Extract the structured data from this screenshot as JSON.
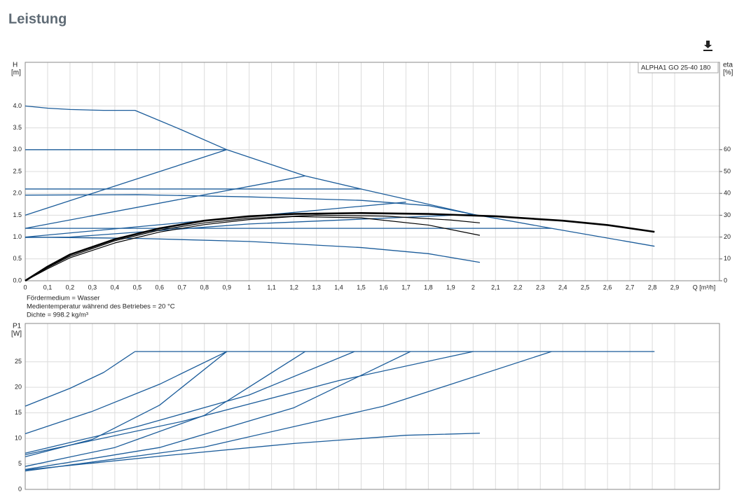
{
  "page_title": "Leistung",
  "chart_data": [
    {
      "type": "line",
      "ylabel": "H",
      "yunit": "[m]",
      "y2label": "eta",
      "y2unit": "[%]",
      "xlabel": "Q [m³/h]",
      "annotation": "ALPHA1 GO 25-40 180",
      "notes": [
        "Fördermedium = Wasser",
        "Medientemperatur während des Betriebes = 20 °C",
        "Dichte = 998.2 kg/m³"
      ],
      "xlim": [
        0,
        3.1
      ],
      "ylim": [
        0,
        5
      ],
      "y2lim": [
        0,
        100
      ],
      "grid": true,
      "xticks": [
        0,
        {
          "value": 0.1,
          "label": "0,1"
        },
        {
          "value": 0.2,
          "label": "0,2"
        },
        {
          "value": 0.3,
          "label": "0,3"
        },
        {
          "value": 0.4,
          "label": "0,4"
        },
        {
          "value": 0.5,
          "label": "0,5"
        },
        {
          "value": 0.6,
          "label": "0,6"
        },
        {
          "value": 0.7,
          "label": "0,7"
        },
        {
          "value": 0.8,
          "label": "0,8"
        },
        {
          "value": 0.9,
          "label": "0,9"
        },
        1,
        {
          "value": 1.1,
          "label": "1,1"
        },
        {
          "value": 1.2,
          "label": "1,2"
        },
        {
          "value": 1.3,
          "label": "1,3"
        },
        {
          "value": 1.4,
          "label": "1,4"
        },
        {
          "value": 1.5,
          "label": "1,5"
        },
        {
          "value": 1.6,
          "label": "1,6"
        },
        {
          "value": 1.7,
          "label": "1,7"
        },
        {
          "value": 1.8,
          "label": "1,8"
        },
        {
          "value": 1.9,
          "label": "1,9"
        },
        2,
        {
          "value": 2.1,
          "label": "2,1"
        },
        {
          "value": 2.2,
          "label": "2,2"
        },
        {
          "value": 2.3,
          "label": "2,3"
        },
        {
          "value": 2.4,
          "label": "2,4"
        },
        {
          "value": 2.5,
          "label": "2,5"
        },
        {
          "value": 2.6,
          "label": "2,6"
        },
        {
          "value": 2.7,
          "label": "2,7"
        },
        {
          "value": 2.8,
          "label": "2,8"
        },
        {
          "value": 2.9,
          "label": "2,9"
        }
      ],
      "yticks": [
        {
          "value": 0,
          "label": "0.0"
        },
        0.5,
        {
          "value": 1,
          "label": "1.0"
        },
        1.5,
        {
          "value": 2,
          "label": "2.0"
        },
        2.5,
        {
          "value": 3,
          "label": "3.0"
        },
        3.5,
        {
          "value": 4,
          "label": "4.0"
        }
      ],
      "y2ticks": [
        0,
        10,
        20,
        30,
        40,
        50,
        60
      ],
      "series": [
        {
          "color": "#1b5c9a",
          "line_width": 1.3,
          "x": [
            0,
            0.1,
            0.2,
            0.35,
            0.49,
            0.7,
            0.9,
            1.25,
            1.5,
            2.0,
            2.35,
            2.81
          ],
          "values": [
            4.0,
            3.95,
            3.92,
            3.9,
            3.9,
            3.45,
            3.0,
            2.4,
            2.1,
            1.52,
            1.2,
            0.79
          ]
        },
        {
          "color": "#1b5c9a",
          "line_width": 1.3,
          "x": [
            0,
            0.9
          ],
          "values": [
            3.0,
            3.0
          ]
        },
        {
          "color": "#1b5c9a",
          "line_width": 1.3,
          "x": [
            0,
            0.9
          ],
          "values": [
            1.5,
            3.0
          ]
        },
        {
          "color": "#1b5c9a",
          "line_width": 1.3,
          "x": [
            0,
            1.25
          ],
          "values": [
            1.2,
            2.4
          ]
        },
        {
          "color": "#1b5c9a",
          "line_width": 1.3,
          "x": [
            0,
            1.5
          ],
          "values": [
            2.1,
            2.1
          ]
        },
        {
          "color": "#1b5c9a",
          "line_width": 1.3,
          "x": [
            0,
            0.5,
            1.0,
            1.5,
            1.8,
            2.0
          ],
          "values": [
            1.96,
            1.97,
            1.92,
            1.84,
            1.72,
            1.52
          ]
        },
        {
          "color": "#1b5c9a",
          "line_width": 1.3,
          "x": [
            0,
            1.7
          ],
          "values": [
            1.0,
            1.8
          ]
        },
        {
          "color": "#1b5c9a",
          "line_width": 1.3,
          "x": [
            0,
            2.35
          ],
          "values": [
            1.2,
            1.2
          ]
        },
        {
          "color": "#1b5c9a",
          "line_width": 1.3,
          "x": [
            0,
            0.2,
            1.0,
            2.0
          ],
          "values": [
            0.99,
            1.0,
            1.3,
            1.52
          ]
        },
        {
          "color": "#1b5c9a",
          "line_width": 1.3,
          "x": [
            0,
            0.5,
            1.0,
            1.5,
            1.8,
            2.03
          ],
          "values": [
            1.0,
            0.97,
            0.9,
            0.76,
            0.62,
            0.42
          ]
        },
        {
          "color": "#000000",
          "line_width": 2.6,
          "axis": "y2",
          "x": [
            0,
            0.1,
            0.2,
            0.4,
            0.6,
            0.8,
            1.0,
            1.2,
            1.5,
            1.8,
            2.1,
            2.4,
            2.6,
            2.81
          ],
          "values": [
            0,
            6.5,
            12,
            19,
            24,
            27.5,
            29.5,
            30.6,
            31,
            30.6,
            29.5,
            27.5,
            25.5,
            22.4
          ]
        },
        {
          "color": "#000000",
          "line_width": 1.2,
          "axis": "y2",
          "x": [
            0,
            0.1,
            0.2,
            0.4,
            0.6,
            0.8,
            1.0,
            1.3,
            1.6,
            1.9,
            2.03
          ],
          "values": [
            0,
            6,
            11.2,
            18.3,
            23.2,
            26.5,
            28.6,
            30,
            29.6,
            27.8,
            26.5
          ]
        },
        {
          "color": "#000000",
          "line_width": 1.2,
          "axis": "y2",
          "x": [
            0,
            0.1,
            0.2,
            0.4,
            0.6,
            0.8,
            1.0,
            1.2,
            1.5,
            1.8,
            2.03
          ],
          "values": [
            0,
            5.5,
            10.5,
            17.3,
            22.3,
            25.7,
            28,
            29.4,
            28.8,
            25.5,
            20.8
          ]
        }
      ]
    },
    {
      "type": "line",
      "ylabel": "P1",
      "yunit": "[W]",
      "xlim": [
        0,
        3.1
      ],
      "ylim": [
        0,
        32.5
      ],
      "grid": true,
      "xtick_labels": false,
      "xticks": [
        0,
        0.1,
        0.2,
        0.3,
        0.4,
        0.5,
        0.6,
        0.7,
        0.8,
        0.9,
        1,
        1.1,
        1.2,
        1.3,
        1.4,
        1.5,
        1.6,
        1.7,
        1.8,
        1.9,
        2,
        2.1,
        2.2,
        2.3,
        2.4,
        2.5,
        2.6,
        2.7,
        2.8,
        2.9
      ],
      "yticks": [
        0,
        5,
        10,
        15,
        20,
        25
      ],
      "series": [
        {
          "color": "#1b5c9a",
          "line_width": 1.3,
          "x": [
            0,
            0.2,
            0.35,
            0.49
          ],
          "values": [
            16.3,
            19.8,
            22.9,
            27
          ]
        },
        {
          "color": "#1b5c9a",
          "line_width": 1.3,
          "x": [
            0.49,
            2.81
          ],
          "values": [
            27,
            27
          ]
        },
        {
          "color": "#1b5c9a",
          "line_width": 1.3,
          "x": [
            0,
            0.3,
            0.6,
            0.9
          ],
          "values": [
            10.9,
            15.3,
            20.6,
            27
          ]
        },
        {
          "color": "#1b5c9a",
          "line_width": 1.3,
          "x": [
            0,
            0.3,
            0.6,
            0.9
          ],
          "values": [
            6.4,
            9.8,
            16.5,
            27
          ]
        },
        {
          "color": "#1b5c9a",
          "line_width": 1.3,
          "x": [
            0,
            0.4,
            0.8,
            1.25
          ],
          "values": [
            4.5,
            8.2,
            14.5,
            27
          ]
        },
        {
          "color": "#1b5c9a",
          "line_width": 1.3,
          "x": [
            0,
            0.5,
            1.0,
            1.47
          ],
          "values": [
            7.1,
            12.3,
            18.5,
            27
          ]
        },
        {
          "color": "#1b5c9a",
          "line_width": 1.3,
          "x": [
            0,
            0.6,
            1.2,
            1.72
          ],
          "values": [
            3.9,
            8.2,
            16,
            27
          ]
        },
        {
          "color": "#1b5c9a",
          "line_width": 1.3,
          "x": [
            0,
            0.7,
            1.4,
            2.0
          ],
          "values": [
            6.8,
            13.3,
            21.3,
            27
          ]
        },
        {
          "color": "#1b5c9a",
          "line_width": 1.3,
          "x": [
            0,
            0.8,
            1.6,
            2.35
          ],
          "values": [
            3.6,
            8.3,
            16.3,
            27
          ]
        },
        {
          "color": "#1b5c9a",
          "line_width": 1.3,
          "x": [
            0,
            0.6,
            1.2,
            1.7,
            2.03
          ],
          "values": [
            3.8,
            6.5,
            9,
            10.6,
            11
          ]
        }
      ]
    }
  ]
}
